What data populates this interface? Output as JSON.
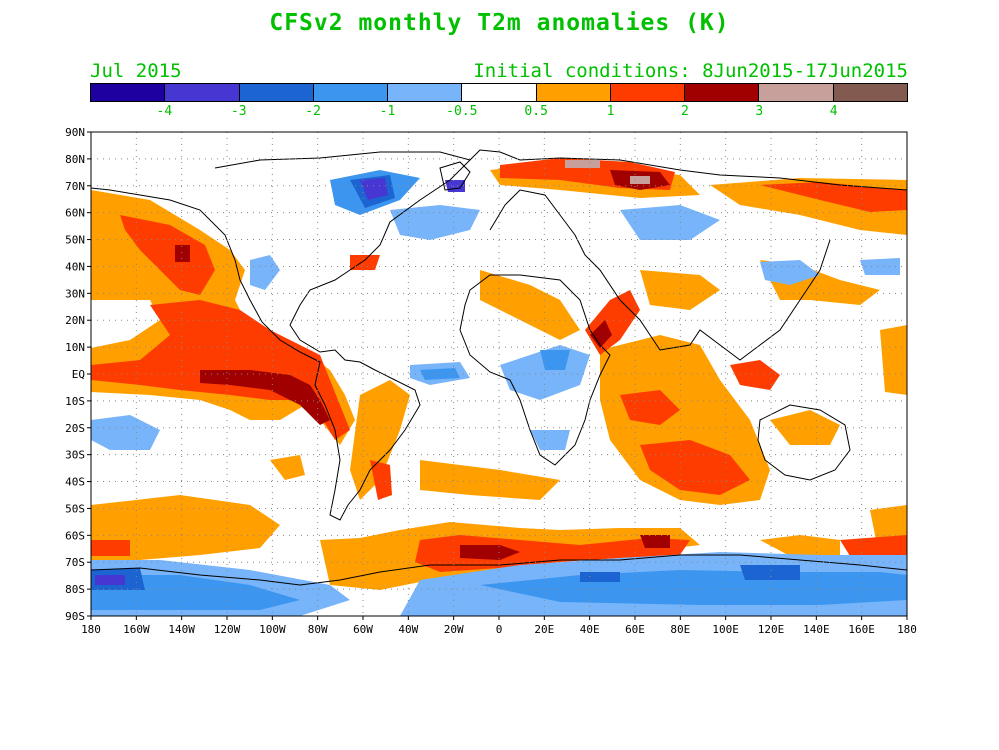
{
  "title": "CFSv2 monthly T2m anomalies (K)",
  "valid_month": "Jul 2015",
  "initial_conditions": "Initial conditions: 8Jun2015-17Jun2015",
  "colorbar": {
    "colors": [
      "#1e00a0",
      "#4636d2",
      "#1c64d2",
      "#3c96f0",
      "#78b4fa",
      "#ffffff",
      "#ffa000",
      "#ff3c00",
      "#a00000",
      "#c8a09b",
      "#825a50"
    ],
    "labels": [
      "-4",
      "-3",
      "-2",
      "-1",
      "-0.5",
      "0.5",
      "1",
      "2",
      "3",
      "4"
    ]
  },
  "map": {
    "lat_labels": [
      "90N",
      "80N",
      "70N",
      "60N",
      "50N",
      "40N",
      "30N",
      "20N",
      "10N",
      "EQ",
      "10S",
      "20S",
      "30S",
      "40S",
      "50S",
      "60S",
      "70S",
      "80S",
      "90S"
    ],
    "lon_labels": [
      "180",
      "160W",
      "140W",
      "120W",
      "100W",
      "80W",
      "60W",
      "40W",
      "20W",
      "0",
      "20E",
      "40E",
      "60E",
      "80E",
      "100E",
      "120E",
      "140E",
      "160E",
      "180"
    ]
  }
}
